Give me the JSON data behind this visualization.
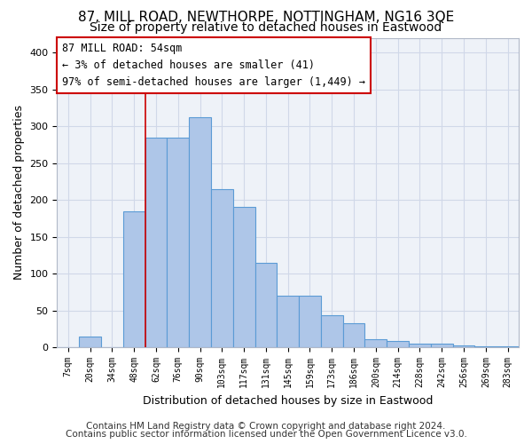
{
  "title1": "87, MILL ROAD, NEWTHORPE, NOTTINGHAM, NG16 3QE",
  "title2": "Size of property relative to detached houses in Eastwood",
  "xlabel": "Distribution of detached houses by size in Eastwood",
  "ylabel": "Number of detached properties",
  "footer1": "Contains HM Land Registry data © Crown copyright and database right 2024.",
  "footer2": "Contains public sector information licensed under the Open Government Licence v3.0.",
  "categories": [
    "7sqm",
    "20sqm",
    "34sqm",
    "48sqm",
    "62sqm",
    "76sqm",
    "90sqm",
    "103sqm",
    "117sqm",
    "131sqm",
    "145sqm",
    "159sqm",
    "173sqm",
    "186sqm",
    "200sqm",
    "214sqm",
    "228sqm",
    "242sqm",
    "256sqm",
    "269sqm",
    "283sqm"
  ],
  "values": [
    0,
    15,
    0,
    185,
    285,
    285,
    312,
    215,
    190,
    115,
    70,
    70,
    44,
    33,
    11,
    9,
    5,
    5,
    3,
    2,
    1
  ],
  "bar_color": "#aec6e8",
  "bar_edge_color": "#5b9bd5",
  "grid_color": "#d0d8e8",
  "background_color": "#eef2f8",
  "annotation_text": "87 MILL ROAD: 54sqm\n← 3% of detached houses are smaller (41)\n97% of semi-detached houses are larger (1,449) →",
  "vline_pos": 3.5,
  "vline_color": "#cc0000",
  "ylim": [
    0,
    420
  ],
  "yticks": [
    0,
    50,
    100,
    150,
    200,
    250,
    300,
    350,
    400
  ],
  "title1_fontsize": 11,
  "title2_fontsize": 10,
  "xlabel_fontsize": 9,
  "ylabel_fontsize": 9,
  "annotation_fontsize": 8.5,
  "footer_fontsize": 7.5
}
